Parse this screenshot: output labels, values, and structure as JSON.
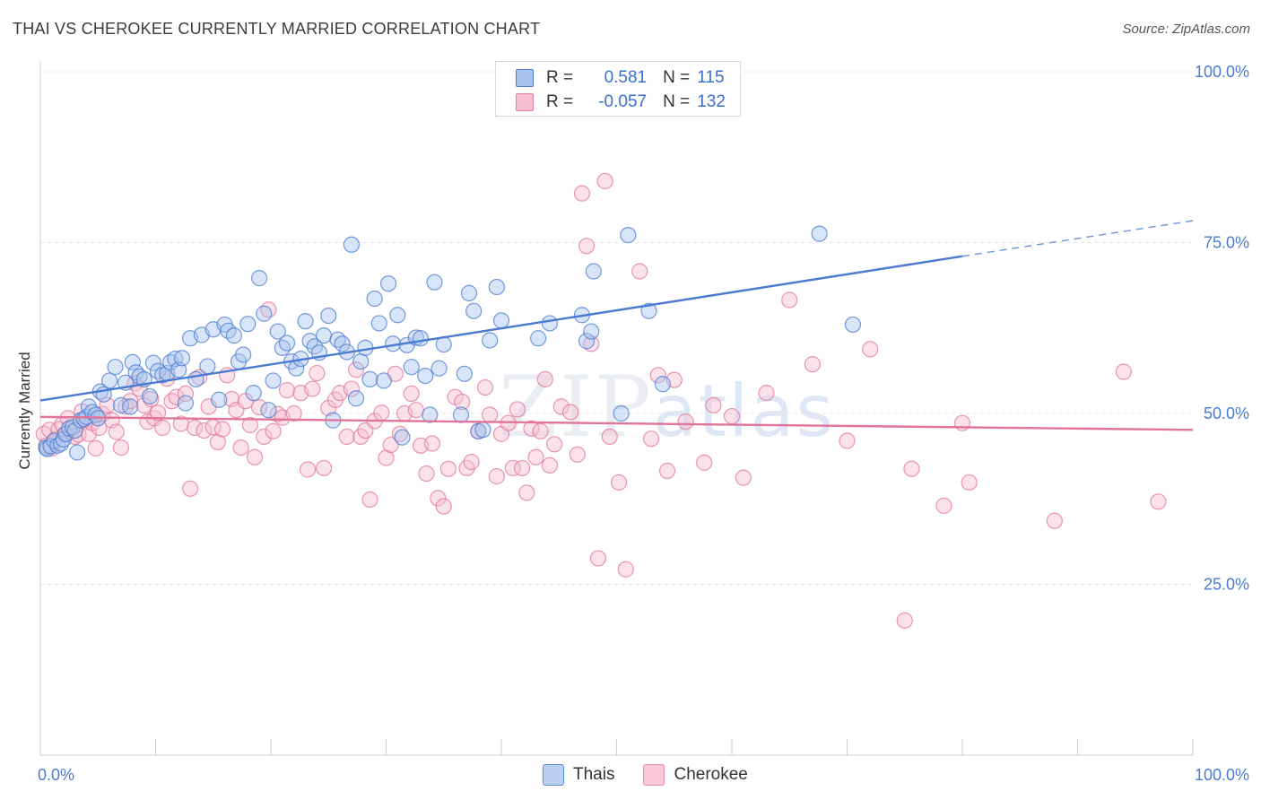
{
  "title": "THAI VS CHEROKEE CURRENTLY MARRIED CORRELATION CHART",
  "source": "Source: ZipAtlas.com",
  "watermark": {
    "zip": "ZIP",
    "atlas": "atlas"
  },
  "legend": {
    "rows": [
      {
        "r_label": "R =",
        "r_value": "0.581",
        "n_label": "N =",
        "n_value": "115",
        "color": "#a9c4ee",
        "border": "#4a7bd0"
      },
      {
        "r_label": "R =",
        "r_value": "-0.057",
        "n_label": "N =",
        "n_value": "132",
        "color": "#f6bfd0",
        "border": "#e07fa0"
      }
    ]
  },
  "bottom_legend": [
    {
      "label": "Thais",
      "color": "#b9d0f3",
      "border": "#5d8fd8"
    },
    {
      "label": "Cherokee",
      "color": "#f9c9d7",
      "border": "#e58aa7"
    }
  ],
  "chart_data": {
    "type": "scatter",
    "title": "THAI VS CHEROKEE CURRENTLY MARRIED CORRELATION CHART",
    "xlabel": "",
    "ylabel": "Currently Married",
    "xlim": [
      0,
      100
    ],
    "ylim": [
      0,
      100
    ],
    "x_tick_labels": [
      "0.0%",
      "100.0%"
    ],
    "y_ticks": [
      25,
      50,
      75,
      100
    ],
    "y_tick_labels": [
      "25.0%",
      "50.0%",
      "75.0%",
      "100.0%"
    ],
    "grid": true,
    "legend_position": "top-center",
    "series": [
      {
        "name": "Thais",
        "color": "#4a7bd0",
        "fill": "#a9c4ee",
        "trend": {
          "x": [
            0,
            80
          ],
          "y": [
            51.9,
            73.0
          ],
          "dash_to": [
            100,
            78.2
          ]
        },
        "points": [
          [
            0.5,
            45
          ],
          [
            0.6,
            44.8
          ],
          [
            0.9,
            45.2
          ],
          [
            1.2,
            46
          ],
          [
            1.5,
            45.3
          ],
          [
            1.8,
            45.6
          ],
          [
            2,
            46.2
          ],
          [
            2.2,
            47
          ],
          [
            2.5,
            47.8
          ],
          [
            2.8,
            48
          ],
          [
            3,
            47.5
          ],
          [
            3.2,
            44.3
          ],
          [
            3.5,
            49
          ],
          [
            3.8,
            49.2
          ],
          [
            4,
            49.5
          ],
          [
            4.2,
            51
          ],
          [
            4.5,
            50.2
          ],
          [
            4.8,
            49.8
          ],
          [
            5,
            49.3
          ],
          [
            5.2,
            53.2
          ],
          [
            5.5,
            52.8
          ],
          [
            6,
            54.8
          ],
          [
            6.5,
            56.8
          ],
          [
            7,
            51.2
          ],
          [
            7.4,
            54.5
          ],
          [
            7.8,
            51
          ],
          [
            8,
            57.5
          ],
          [
            8.3,
            56
          ],
          [
            8.6,
            55.4
          ],
          [
            9,
            55
          ],
          [
            9.5,
            52.5
          ],
          [
            9.8,
            57.4
          ],
          [
            10.2,
            56.2
          ],
          [
            10.6,
            55.6
          ],
          [
            11,
            55.9
          ],
          [
            11.3,
            57.5
          ],
          [
            11.7,
            58
          ],
          [
            12,
            56.4
          ],
          [
            12.3,
            58.1
          ],
          [
            12.6,
            51.5
          ],
          [
            13,
            61
          ],
          [
            13.5,
            55
          ],
          [
            14,
            61.5
          ],
          [
            14.5,
            56.9
          ],
          [
            15,
            62.3
          ],
          [
            15.5,
            52
          ],
          [
            16,
            63
          ],
          [
            16.3,
            62.1
          ],
          [
            16.8,
            61.4
          ],
          [
            17.2,
            57.6
          ],
          [
            17.6,
            58.6
          ],
          [
            18,
            63.1
          ],
          [
            18.5,
            53
          ],
          [
            19,
            69.8
          ],
          [
            19.4,
            64.6
          ],
          [
            19.8,
            50.5
          ],
          [
            20.2,
            54.8
          ],
          [
            20.6,
            62
          ],
          [
            21,
            59.6
          ],
          [
            21.4,
            60.3
          ],
          [
            21.8,
            57.6
          ],
          [
            22.2,
            56.6
          ],
          [
            22.6,
            58
          ],
          [
            23,
            63.5
          ],
          [
            23.4,
            60.6
          ],
          [
            23.8,
            59.8
          ],
          [
            24.2,
            58.9
          ],
          [
            24.6,
            61.4
          ],
          [
            25,
            64.3
          ],
          [
            25.4,
            49
          ],
          [
            25.8,
            60.8
          ],
          [
            26.2,
            60.2
          ],
          [
            26.6,
            59
          ],
          [
            27,
            74.7
          ],
          [
            27.4,
            52.2
          ],
          [
            27.8,
            57.6
          ],
          [
            28.2,
            59.6
          ],
          [
            28.6,
            55
          ],
          [
            29,
            66.8
          ],
          [
            29.4,
            63.2
          ],
          [
            29.8,
            54.8
          ],
          [
            30.2,
            69
          ],
          [
            30.6,
            60.2
          ],
          [
            31,
            64.4
          ],
          [
            31.4,
            46.5
          ],
          [
            31.8,
            60
          ],
          [
            32.2,
            56.8
          ],
          [
            32.6,
            61.1
          ],
          [
            33,
            61
          ],
          [
            33.4,
            55.5
          ],
          [
            33.8,
            49.8
          ],
          [
            34.2,
            69.2
          ],
          [
            34.6,
            56.6
          ],
          [
            35,
            60.1
          ],
          [
            36.5,
            49.8
          ],
          [
            36.8,
            55.8
          ],
          [
            37.2,
            67.6
          ],
          [
            37.6,
            65
          ],
          [
            38,
            47.4
          ],
          [
            38.4,
            47.6
          ],
          [
            39,
            60.7
          ],
          [
            39.6,
            68.5
          ],
          [
            40,
            63.6
          ],
          [
            43.2,
            61
          ],
          [
            44.2,
            63.2
          ],
          [
            47,
            64.4
          ],
          [
            47.4,
            60.6
          ],
          [
            47.8,
            62
          ],
          [
            48,
            70.8
          ],
          [
            50.4,
            50
          ],
          [
            51,
            76.1
          ],
          [
            52.8,
            65
          ],
          [
            54,
            54.3
          ],
          [
            67.6,
            76.3
          ],
          [
            70.5,
            63
          ]
        ]
      },
      {
        "name": "Cherokee",
        "color": "#e0749a",
        "fill": "#f6bfd0",
        "trend": {
          "x": [
            0,
            100
          ],
          "y": [
            49.5,
            47.6
          ]
        },
        "points": [
          [
            0.3,
            47
          ],
          [
            0.5,
            45.3
          ],
          [
            0.8,
            47.6
          ],
          [
            1,
            44.9
          ],
          [
            1.3,
            46.2
          ],
          [
            1.6,
            47.7
          ],
          [
            1.9,
            48.4
          ],
          [
            2.1,
            46.9
          ],
          [
            2.4,
            49.3
          ],
          [
            2.7,
            47.3
          ],
          [
            3,
            46.6
          ],
          [
            3.3,
            46.9
          ],
          [
            3.6,
            50.3
          ],
          [
            3.9,
            48.8
          ],
          [
            4.2,
            47
          ],
          [
            4.5,
            48.6
          ],
          [
            4.8,
            44.9
          ],
          [
            5.1,
            47.9
          ],
          [
            5.4,
            49.9
          ],
          [
            5.8,
            51.2
          ],
          [
            6.2,
            49
          ],
          [
            6.6,
            47.3
          ],
          [
            7,
            45
          ],
          [
            7.4,
            51
          ],
          [
            7.8,
            51.8
          ],
          [
            8.2,
            54.4
          ],
          [
            8.6,
            53.6
          ],
          [
            9,
            51.2
          ],
          [
            9.3,
            48.8
          ],
          [
            9.6,
            52.1
          ],
          [
            9.9,
            49.3
          ],
          [
            10.2,
            50.1
          ],
          [
            10.6,
            47.9
          ],
          [
            11,
            55.1
          ],
          [
            11.4,
            51.8
          ],
          [
            11.8,
            52.4
          ],
          [
            12.2,
            48.5
          ],
          [
            12.6,
            52.9
          ],
          [
            13,
            39
          ],
          [
            13.4,
            47.9
          ],
          [
            13.8,
            55.3
          ],
          [
            14.2,
            47.5
          ],
          [
            14.6,
            51
          ],
          [
            15,
            48
          ],
          [
            15.4,
            45.8
          ],
          [
            15.8,
            47.7
          ],
          [
            16.2,
            55.6
          ],
          [
            16.6,
            52.1
          ],
          [
            17,
            50.5
          ],
          [
            17.4,
            45
          ],
          [
            17.8,
            51.8
          ],
          [
            18.2,
            48.3
          ],
          [
            18.6,
            43.6
          ],
          [
            19,
            50.9
          ],
          [
            19.4,
            46.6
          ],
          [
            19.8,
            65.2
          ],
          [
            20.2,
            47.4
          ],
          [
            20.6,
            49.9
          ],
          [
            21,
            49.4
          ],
          [
            21.4,
            53.4
          ],
          [
            22,
            50
          ],
          [
            22.6,
            53
          ],
          [
            23.2,
            41.8
          ],
          [
            23.6,
            53.6
          ],
          [
            24,
            55.9
          ],
          [
            24.6,
            42
          ],
          [
            25,
            50.8
          ],
          [
            25.6,
            52
          ],
          [
            26,
            53
          ],
          [
            26.6,
            46.6
          ],
          [
            27,
            53.6
          ],
          [
            27.4,
            56.4
          ],
          [
            27.8,
            46.6
          ],
          [
            28.2,
            47.5
          ],
          [
            28.6,
            37.4
          ],
          [
            29,
            48.9
          ],
          [
            29.6,
            50.1
          ],
          [
            30,
            43.5
          ],
          [
            30.4,
            45.4
          ],
          [
            30.8,
            55.8
          ],
          [
            31.2,
            47
          ],
          [
            31.6,
            50
          ],
          [
            32.2,
            52.9
          ],
          [
            32.6,
            50.5
          ],
          [
            33,
            45.3
          ],
          [
            33.5,
            41.2
          ],
          [
            34,
            45.6
          ],
          [
            34.5,
            37.6
          ],
          [
            35,
            36.4
          ],
          [
            35.4,
            41.9
          ],
          [
            36,
            52.4
          ],
          [
            36.6,
            51.7
          ],
          [
            37,
            42
          ],
          [
            37.4,
            42.9
          ],
          [
            38,
            47.4
          ],
          [
            38.6,
            53.8
          ],
          [
            39,
            49.8
          ],
          [
            39.6,
            40.8
          ],
          [
            40,
            47
          ],
          [
            40.6,
            48.6
          ],
          [
            41,
            42
          ],
          [
            41.4,
            50.6
          ],
          [
            41.8,
            42
          ],
          [
            42.2,
            38.4
          ],
          [
            42.6,
            47.8
          ],
          [
            43,
            43.6
          ],
          [
            43.4,
            47.4
          ],
          [
            43.8,
            55
          ],
          [
            44.2,
            42.4
          ],
          [
            44.6,
            45.5
          ],
          [
            45.2,
            51
          ],
          [
            46,
            50.2
          ],
          [
            46.6,
            44
          ],
          [
            47,
            82.2
          ],
          [
            47.4,
            74.5
          ],
          [
            47.8,
            60.2
          ],
          [
            48.4,
            28.8
          ],
          [
            49,
            84
          ],
          [
            49.4,
            46.6
          ],
          [
            50.2,
            39.9
          ],
          [
            50.8,
            27.2
          ],
          [
            52,
            70.8
          ],
          [
            53,
            46.3
          ],
          [
            53.6,
            55.6
          ],
          [
            54.4,
            41.6
          ],
          [
            55,
            54.9
          ],
          [
            56,
            48.8
          ],
          [
            57.6,
            42.8
          ],
          [
            58.4,
            51.2
          ],
          [
            60,
            49.6
          ],
          [
            61,
            40.6
          ],
          [
            63,
            53
          ],
          [
            65,
            66.6
          ],
          [
            67,
            57.2
          ],
          [
            70,
            46
          ],
          [
            72,
            59.4
          ],
          [
            75,
            19.7
          ],
          [
            75.6,
            41.9
          ],
          [
            78.4,
            36.5
          ],
          [
            80,
            48.6
          ],
          [
            80.6,
            39.9
          ],
          [
            88,
            34.3
          ],
          [
            94,
            56.1
          ],
          [
            97,
            37.1
          ]
        ]
      }
    ]
  }
}
